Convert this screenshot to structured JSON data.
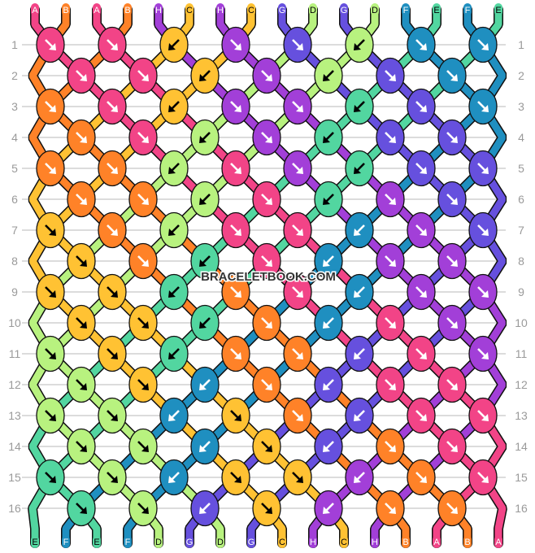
{
  "string_colors": {
    "A": "#f24487",
    "B": "#ff8228",
    "C": "#ffc233",
    "D": "#b8f27f",
    "E": "#52d6a0",
    "F": "#1f8fc0",
    "G": "#6650de",
    "H": "#a23fd8"
  },
  "light_colors": [
    "C",
    "D",
    "E"
  ],
  "strings_top": [
    "A",
    "B",
    "A",
    "B",
    "H",
    "C",
    "H",
    "C",
    "G",
    "D",
    "G",
    "D",
    "F",
    "E",
    "F",
    "E"
  ],
  "strings_bottom": [
    "E",
    "F",
    "E",
    "F",
    "D",
    "G",
    "D",
    "G",
    "C",
    "H",
    "C",
    "H",
    "B",
    "A",
    "B",
    "A"
  ],
  "knot_legend": {
    "R": "forward-knot-arrow-down-right",
    "L": "backward-knot-arrow-down-left"
  },
  "rows": [
    [
      "R",
      "R",
      "L",
      "R",
      "R",
      "L",
      "R",
      "R"
    ],
    [
      "R",
      "R",
      "L",
      "R",
      "L",
      "R",
      "R"
    ],
    [
      "R",
      "R",
      "L",
      "R",
      "R",
      "L",
      "R",
      "R"
    ],
    [
      "R",
      "R",
      "L",
      "R",
      "L",
      "R",
      "R"
    ],
    [
      "R",
      "R",
      "L",
      "R",
      "R",
      "L",
      "R",
      "R"
    ],
    [
      "R",
      "R",
      "L",
      "R",
      "L",
      "R",
      "R"
    ],
    [
      "R",
      "R",
      "L",
      "R",
      "R",
      "L",
      "R",
      "R"
    ],
    [
      "R",
      "R",
      "L",
      "R",
      "L",
      "R",
      "R"
    ],
    [
      "R",
      "R",
      "L",
      "R",
      "R",
      "L",
      "R",
      "R"
    ],
    [
      "R",
      "R",
      "L",
      "R",
      "L",
      "R",
      "R"
    ],
    [
      "R",
      "R",
      "L",
      "R",
      "R",
      "L",
      "R",
      "R"
    ],
    [
      "R",
      "R",
      "L",
      "R",
      "L",
      "R",
      "R"
    ],
    [
      "R",
      "R",
      "L",
      "R",
      "R",
      "L",
      "R",
      "R"
    ],
    [
      "R",
      "R",
      "L",
      "R",
      "L",
      "R",
      "R"
    ],
    [
      "R",
      "R",
      "L",
      "R",
      "R",
      "L",
      "R",
      "R"
    ],
    [
      "R",
      "R",
      "L",
      "R",
      "L",
      "R",
      "R"
    ]
  ],
  "row_numbers": [
    "1",
    "2",
    "3",
    "4",
    "5",
    "6",
    "7",
    "8",
    "9",
    "10",
    "11",
    "12",
    "13",
    "14",
    "15",
    "16"
  ],
  "watermark": "BRACELETBOOK.COM"
}
